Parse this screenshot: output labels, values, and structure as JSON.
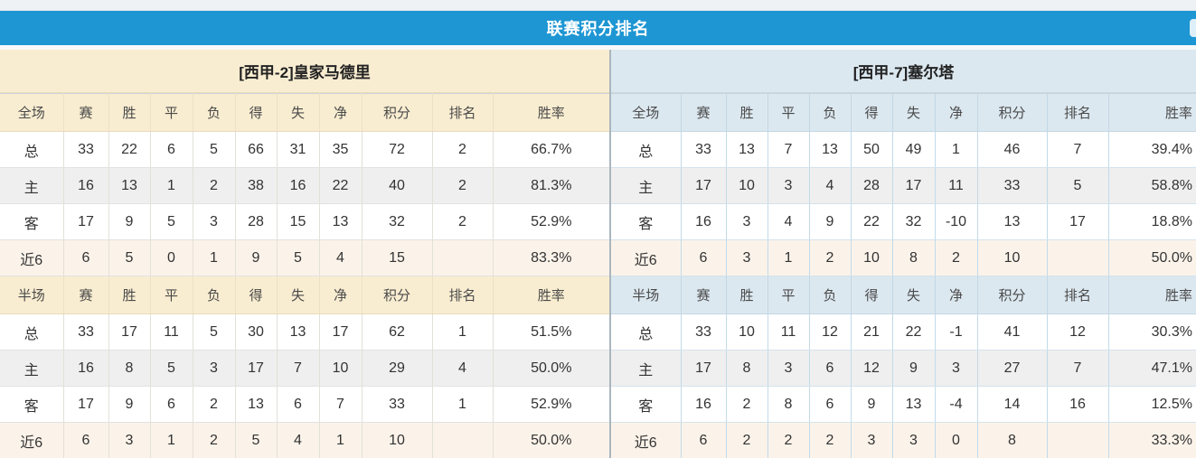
{
  "page": {
    "title": "联赛积分排名"
  },
  "columns": {
    "full_scope": "全场",
    "half_scope": "半场",
    "stats": [
      "赛",
      "胜",
      "平",
      "负",
      "得",
      "失",
      "净",
      "积分",
      "排名",
      "胜率"
    ]
  },
  "colors": {
    "title_bar": "#1e96d3",
    "left_header_bg": "#f9edd1",
    "right_header_bg": "#dce8f0",
    "value_red": "#e8391d",
    "rank_blue": "#2f7dd0",
    "home_label_red": "#cb2f2f",
    "away_label_blue": "#6b6bd8",
    "alt_row_gray": "#efefef",
    "recent_row_cream": "#fbf3ea"
  },
  "teams": [
    {
      "name": "[西甲-2]皇家马德里",
      "sections": [
        {
          "scope": "全场",
          "rows": [
            [
              "总",
              "33",
              "22",
              "6",
              "5",
              "66",
              "31",
              "35",
              "72",
              "2",
              "66.7%"
            ],
            [
              "主",
              "16",
              "13",
              "1",
              "2",
              "38",
              "16",
              "22",
              "40",
              "2",
              "81.3%"
            ],
            [
              "客",
              "17",
              "9",
              "5",
              "3",
              "28",
              "15",
              "13",
              "32",
              "2",
              "52.9%"
            ],
            [
              "近6",
              "6",
              "5",
              "0",
              "1",
              "9",
              "5",
              "4",
              "15",
              "",
              "83.3%"
            ]
          ]
        },
        {
          "scope": "半场",
          "rows": [
            [
              "总",
              "33",
              "17",
              "11",
              "5",
              "30",
              "13",
              "17",
              "62",
              "1",
              "51.5%"
            ],
            [
              "主",
              "16",
              "8",
              "5",
              "3",
              "17",
              "7",
              "10",
              "29",
              "4",
              "50.0%"
            ],
            [
              "客",
              "17",
              "9",
              "6",
              "2",
              "13",
              "6",
              "7",
              "33",
              "1",
              "52.9%"
            ],
            [
              "近6",
              "6",
              "3",
              "1",
              "2",
              "5",
              "4",
              "1",
              "10",
              "",
              "50.0%"
            ]
          ]
        }
      ]
    },
    {
      "name": "[西甲-7]塞尔塔",
      "sections": [
        {
          "scope": "全场",
          "rows": [
            [
              "总",
              "33",
              "13",
              "7",
              "13",
              "50",
              "49",
              "1",
              "46",
              "7",
              "39.4%"
            ],
            [
              "主",
              "17",
              "10",
              "3",
              "4",
              "28",
              "17",
              "11",
              "33",
              "5",
              "58.8%"
            ],
            [
              "客",
              "16",
              "3",
              "4",
              "9",
              "22",
              "32",
              "-10",
              "13",
              "17",
              "18.8%"
            ],
            [
              "近6",
              "6",
              "3",
              "1",
              "2",
              "10",
              "8",
              "2",
              "10",
              "",
              "50.0%"
            ]
          ]
        },
        {
          "scope": "半场",
          "rows": [
            [
              "总",
              "33",
              "10",
              "11",
              "12",
              "21",
              "22",
              "-1",
              "41",
              "12",
              "30.3%"
            ],
            [
              "主",
              "17",
              "8",
              "3",
              "6",
              "12",
              "9",
              "3",
              "27",
              "7",
              "47.1%"
            ],
            [
              "客",
              "16",
              "2",
              "8",
              "6",
              "9",
              "13",
              "-4",
              "14",
              "16",
              "12.5%"
            ],
            [
              "近6",
              "6",
              "2",
              "2",
              "2",
              "3",
              "3",
              "0",
              "8",
              "",
              "33.3%"
            ]
          ]
        }
      ]
    }
  ]
}
